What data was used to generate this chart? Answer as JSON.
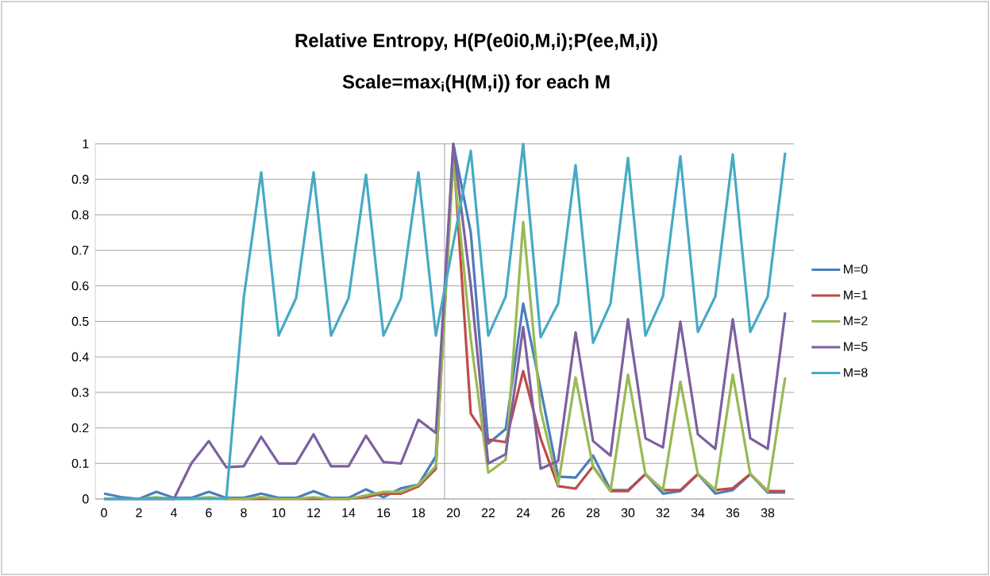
{
  "chart_data": {
    "type": "line",
    "title": "Relative Entropy, H(P(e0i0,M,i);P(ee,M,i))",
    "subtitle": "Scale=max$_{i}$(H(M,i)) for each M",
    "x": [
      0,
      1,
      2,
      3,
      4,
      5,
      6,
      7,
      8,
      9,
      10,
      11,
      12,
      13,
      14,
      15,
      16,
      17,
      18,
      19,
      20,
      21,
      22,
      23,
      24,
      25,
      26,
      27,
      28,
      29,
      30,
      31,
      32,
      33,
      34,
      35,
      36,
      37,
      38,
      39
    ],
    "series": [
      {
        "name": "M=0",
        "color": "#4a7ebb",
        "values": [
          0.015,
          0.005,
          0,
          0.02,
          0.003,
          0.003,
          0.02,
          0.003,
          0.003,
          0.015,
          0.003,
          0.003,
          0.022,
          0.003,
          0.003,
          0.027,
          0.005,
          0.03,
          0.04,
          0.12,
          1.0,
          0.75,
          0.156,
          0.197,
          0.55,
          0.31,
          0.063,
          0.06,
          0.122,
          0.025,
          0.025,
          0.07,
          0.015,
          0.022,
          0.07,
          0.015,
          0.025,
          0.07,
          0.018,
          0.018
        ]
      },
      {
        "name": "M=1",
        "color": "#be4b48",
        "values": [
          null,
          null,
          null,
          null,
          null,
          null,
          null,
          0,
          0,
          0,
          0,
          0,
          0,
          0,
          0,
          0.005,
          0.015,
          0.015,
          0.035,
          0.085,
          0.98,
          0.24,
          0.167,
          0.16,
          0.36,
          0.17,
          0.036,
          0.029,
          0.092,
          0.022,
          0.022,
          0.07,
          0.025,
          0.025,
          0.07,
          0.025,
          0.03,
          0.07,
          0.022,
          0.022
        ]
      },
      {
        "name": "M=2",
        "color": "#98b954",
        "values": [
          0,
          0,
          0,
          0.005,
          0,
          0,
          0.005,
          0,
          0,
          0.005,
          0,
          0,
          0.005,
          0,
          0,
          0.01,
          0.02,
          0.02,
          0.04,
          0.092,
          0.95,
          0.45,
          0.074,
          0.11,
          0.78,
          0.25,
          0.04,
          0.342,
          0.09,
          0.022,
          0.35,
          0.07,
          0.025,
          0.33,
          0.07,
          0.025,
          0.35,
          0.07,
          0.022,
          0.342
        ]
      },
      {
        "name": "M=5",
        "color": "#7d60a0",
        "values": [
          0,
          0,
          0,
          0,
          0,
          0.1,
          0.163,
          0.089,
          0.092,
          0.175,
          0.1,
          0.1,
          0.182,
          0.092,
          0.092,
          0.178,
          0.104,
          0.1,
          0.223,
          0.186,
          1.0,
          0.6,
          0.1,
          0.126,
          0.484,
          0.085,
          0.107,
          0.469,
          0.163,
          0.122,
          0.506,
          0.171,
          0.145,
          0.499,
          0.182,
          0.141,
          0.506,
          0.171,
          0.141,
          0.525
        ]
      },
      {
        "name": "M=8",
        "color": "#46aac5",
        "values": [
          0,
          0,
          0,
          0,
          0,
          0,
          0,
          0,
          0.566,
          0.92,
          0.46,
          0.566,
          0.92,
          0.46,
          0.565,
          0.913,
          0.46,
          0.565,
          0.92,
          0.46,
          0.72,
          0.98,
          0.46,
          0.57,
          1.0,
          0.455,
          0.55,
          0.94,
          0.44,
          0.55,
          0.96,
          0.46,
          0.57,
          0.965,
          0.47,
          0.57,
          0.97,
          0.47,
          0.57,
          0.975
        ]
      }
    ],
    "xlim": [
      -0.5,
      39.5
    ],
    "ylim": [
      0,
      1
    ],
    "xticks": [
      0,
      2,
      4,
      6,
      8,
      10,
      12,
      14,
      16,
      18,
      20,
      22,
      24,
      26,
      28,
      30,
      32,
      34,
      36,
      38
    ],
    "yticks": [
      0,
      0.1,
      0.2,
      0.3,
      0.4,
      0.5,
      0.6,
      0.7,
      0.8,
      0.9,
      1
    ],
    "ref_lines": [
      {
        "axis": "x",
        "value": 19.5,
        "color": "#a0a0a0"
      }
    ],
    "grid": "y",
    "legend": "right",
    "marker": "none",
    "line_style": "solid"
  }
}
